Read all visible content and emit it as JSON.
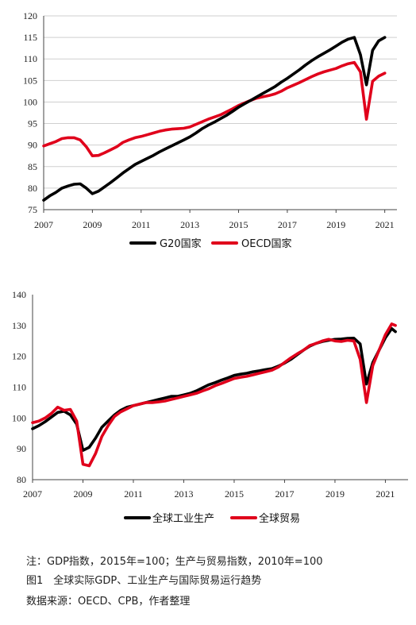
{
  "figure": {
    "note": "注：GDP指数，2015年=100；生产与贸易指数，2010年=100",
    "title": "图1　全球实际GDP、工业生产与国际贸易运行趋势",
    "source": "数据来源：OECD、CPB，作者整理"
  },
  "chart_data": [
    {
      "type": "line",
      "ylim": [
        75,
        120
      ],
      "yticks": [
        "75",
        "80",
        "85",
        "90",
        "95",
        "100",
        "105",
        "110",
        "115",
        "120"
      ],
      "xlim": [
        2007,
        2021.5
      ],
      "xticks": [
        "2007",
        "2009",
        "2011",
        "2013",
        "2015",
        "2017",
        "2019",
        "2021"
      ],
      "grid": true,
      "legend_position": "bottom",
      "colors": [
        "#000000",
        "#e0001b"
      ],
      "series": [
        {
          "name": "G20国家",
          "x": [
            2007.0,
            2007.25,
            2007.5,
            2007.75,
            2008.0,
            2008.25,
            2008.5,
            2008.75,
            2009.0,
            2009.25,
            2009.5,
            2009.75,
            2010.0,
            2010.25,
            2010.5,
            2010.75,
            2011.0,
            2011.25,
            2011.5,
            2011.75,
            2012.0,
            2012.25,
            2012.5,
            2012.75,
            2013.0,
            2013.25,
            2013.5,
            2013.75,
            2014.0,
            2014.25,
            2014.5,
            2014.75,
            2015.0,
            2015.25,
            2015.5,
            2015.75,
            2016.0,
            2016.25,
            2016.5,
            2016.75,
            2017.0,
            2017.25,
            2017.5,
            2017.75,
            2018.0,
            2018.25,
            2018.5,
            2018.75,
            2019.0,
            2019.25,
            2019.5,
            2019.75,
            2020.0,
            2020.25,
            2020.5,
            2020.75,
            2021.0
          ],
          "values": [
            77.2,
            78.2,
            79.0,
            80.0,
            80.5,
            80.9,
            81.0,
            80.0,
            78.7,
            79.3,
            80.3,
            81.3,
            82.4,
            83.5,
            84.5,
            85.5,
            86.2,
            86.9,
            87.6,
            88.4,
            89.1,
            89.8,
            90.5,
            91.2,
            91.9,
            92.8,
            93.8,
            94.6,
            95.3,
            96.1,
            96.9,
            97.8,
            98.8,
            99.6,
            100.4,
            101.2,
            102.0,
            102.8,
            103.6,
            104.6,
            105.5,
            106.5,
            107.5,
            108.6,
            109.6,
            110.5,
            111.3,
            112.1,
            113.0,
            113.9,
            114.6,
            115.0,
            111.0,
            104.0,
            112.0,
            114.2,
            115.0
          ]
        },
        {
          "name": "OECD国家",
          "x": [
            2007.0,
            2007.25,
            2007.5,
            2007.75,
            2008.0,
            2008.25,
            2008.5,
            2008.75,
            2009.0,
            2009.25,
            2009.5,
            2009.75,
            2010.0,
            2010.25,
            2010.5,
            2010.75,
            2011.0,
            2011.25,
            2011.5,
            2011.75,
            2012.0,
            2012.25,
            2012.5,
            2012.75,
            2013.0,
            2013.25,
            2013.5,
            2013.75,
            2014.0,
            2014.25,
            2014.5,
            2014.75,
            2015.0,
            2015.25,
            2015.5,
            2015.75,
            2016.0,
            2016.25,
            2016.5,
            2016.75,
            2017.0,
            2017.25,
            2017.5,
            2017.75,
            2018.0,
            2018.25,
            2018.5,
            2018.75,
            2019.0,
            2019.25,
            2019.5,
            2019.75,
            2020.0,
            2020.25,
            2020.5,
            2020.75,
            2021.0
          ],
          "values": [
            89.8,
            90.3,
            90.8,
            91.5,
            91.7,
            91.7,
            91.2,
            89.6,
            87.5,
            87.6,
            88.2,
            88.9,
            89.6,
            90.6,
            91.2,
            91.7,
            92.0,
            92.4,
            92.8,
            93.2,
            93.5,
            93.7,
            93.8,
            93.9,
            94.2,
            94.8,
            95.4,
            96.0,
            96.5,
            97.0,
            97.7,
            98.4,
            99.2,
            99.8,
            100.4,
            100.9,
            101.2,
            101.5,
            101.9,
            102.5,
            103.3,
            103.9,
            104.5,
            105.2,
            105.9,
            106.5,
            107.0,
            107.4,
            107.8,
            108.4,
            108.9,
            109.2,
            107.0,
            96.0,
            104.8,
            106.0,
            106.7
          ]
        }
      ]
    },
    {
      "type": "line",
      "ylim": [
        80,
        140
      ],
      "yticks": [
        "80",
        "90",
        "100",
        "110",
        "120",
        "130",
        "140"
      ],
      "xlim": [
        2007,
        2021.9
      ],
      "xticks": [
        "2007",
        "2009",
        "2011",
        "2013",
        "2015",
        "2017",
        "2019",
        "2021"
      ],
      "grid": false,
      "legend_position": "bottom",
      "colors": [
        "#000000",
        "#e0001b"
      ],
      "series": [
        {
          "name": "全球工业生产",
          "x": [
            2007.0,
            2007.25,
            2007.5,
            2007.75,
            2008.0,
            2008.25,
            2008.5,
            2008.75,
            2009.0,
            2009.25,
            2009.5,
            2009.75,
            2010.0,
            2010.25,
            2010.5,
            2010.75,
            2011.0,
            2011.25,
            2011.5,
            2011.75,
            2012.0,
            2012.25,
            2012.5,
            2012.75,
            2013.0,
            2013.25,
            2013.5,
            2013.75,
            2014.0,
            2014.25,
            2014.5,
            2014.75,
            2015.0,
            2015.25,
            2015.5,
            2015.75,
            2016.0,
            2016.25,
            2016.5,
            2016.75,
            2017.0,
            2017.25,
            2017.5,
            2017.75,
            2018.0,
            2018.25,
            2018.5,
            2018.75,
            2019.0,
            2019.25,
            2019.5,
            2019.75,
            2020.0,
            2020.25,
            2020.5,
            2020.75,
            2021.0,
            2021.25,
            2021.4
          ],
          "values": [
            96.5,
            97.5,
            98.8,
            100.3,
            101.8,
            102.2,
            101.0,
            98.0,
            89.5,
            90.5,
            93.5,
            97.0,
            99.0,
            101.0,
            102.5,
            103.5,
            104.0,
            104.5,
            105.0,
            105.5,
            106.0,
            106.5,
            107.0,
            107.0,
            107.5,
            108.0,
            108.8,
            109.8,
            110.8,
            111.5,
            112.3,
            113.0,
            113.8,
            114.2,
            114.5,
            115.0,
            115.3,
            115.7,
            116.0,
            116.8,
            117.8,
            119.0,
            120.5,
            122.0,
            123.3,
            124.2,
            124.8,
            125.2,
            125.5,
            125.6,
            125.8,
            125.9,
            124.0,
            111.0,
            118.0,
            122.0,
            126.0,
            129.0,
            128.0
          ]
        },
        {
          "name": "全球贸易",
          "x": [
            2007.0,
            2007.25,
            2007.5,
            2007.75,
            2008.0,
            2008.25,
            2008.5,
            2008.75,
            2009.0,
            2009.25,
            2009.5,
            2009.75,
            2010.0,
            2010.25,
            2010.5,
            2010.75,
            2011.0,
            2011.25,
            2011.5,
            2011.75,
            2012.0,
            2012.25,
            2012.5,
            2012.75,
            2013.0,
            2013.25,
            2013.5,
            2013.75,
            2014.0,
            2014.25,
            2014.5,
            2014.75,
            2015.0,
            2015.25,
            2015.5,
            2015.75,
            2016.0,
            2016.25,
            2016.5,
            2016.75,
            2017.0,
            2017.25,
            2017.5,
            2017.75,
            2018.0,
            2018.25,
            2018.5,
            2018.75,
            2019.0,
            2019.25,
            2019.5,
            2019.75,
            2020.0,
            2020.25,
            2020.5,
            2020.75,
            2021.0,
            2021.25,
            2021.4
          ],
          "values": [
            98.5,
            99.0,
            100.0,
            101.5,
            103.5,
            102.5,
            102.8,
            99.0,
            85.0,
            84.5,
            88.5,
            94.0,
            97.5,
            100.5,
            102.0,
            103.0,
            104.0,
            104.5,
            105.0,
            105.0,
            105.2,
            105.5,
            106.0,
            106.5,
            107.0,
            107.5,
            108.0,
            108.8,
            109.5,
            110.5,
            111.2,
            112.0,
            112.8,
            113.2,
            113.5,
            114.0,
            114.5,
            115.0,
            115.5,
            116.5,
            118.0,
            119.5,
            120.8,
            122.0,
            123.5,
            124.2,
            125.0,
            125.5,
            125.0,
            124.8,
            125.2,
            125.0,
            119.0,
            105.0,
            117.0,
            122.0,
            127.0,
            130.5,
            130.0
          ]
        }
      ]
    }
  ]
}
